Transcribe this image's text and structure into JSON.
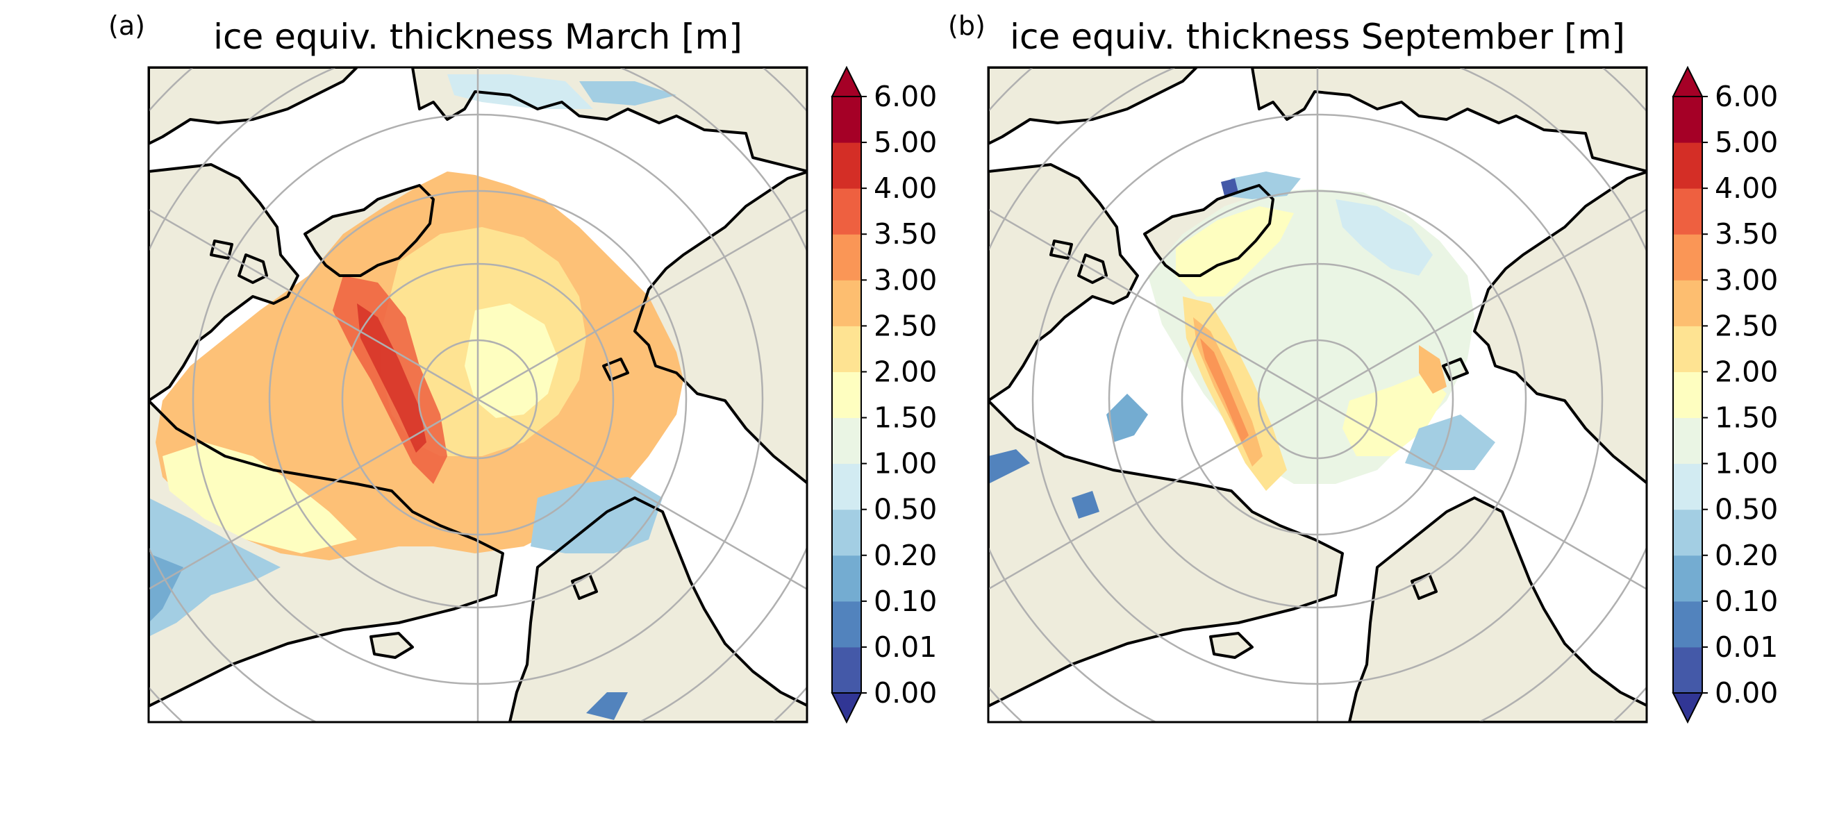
{
  "panels": [
    {
      "letter": "(a)",
      "title": "ice equiv. thickness March [m]",
      "month": "March"
    },
    {
      "letter": "(b)",
      "title": "ice equiv. thickness September [m]",
      "month": "September"
    }
  ],
  "colorbar": {
    "ticks": [
      "0.00",
      "0.01",
      "0.10",
      "0.20",
      "0.50",
      "1.00",
      "1.50",
      "2.00",
      "2.50",
      "3.00",
      "3.50",
      "4.00",
      "5.00",
      "6.00"
    ],
    "extend": "both",
    "under_color": "#313695",
    "over_color": "#a50026",
    "bin_colors": [
      "#4459a8",
      "#5283bd",
      "#74acd1",
      "#a3cee3",
      "#d2ebf2",
      "#eaf5e4",
      "#fefec0",
      "#fee392",
      "#fdbe70",
      "#fa9656",
      "#ee6040",
      "#d42e26",
      "#a50026"
    ]
  },
  "colors": {
    "land": "#eeecdc",
    "ocean": "#ffffff",
    "coast": "#000000",
    "graticule": "#b0b0b0"
  }
}
